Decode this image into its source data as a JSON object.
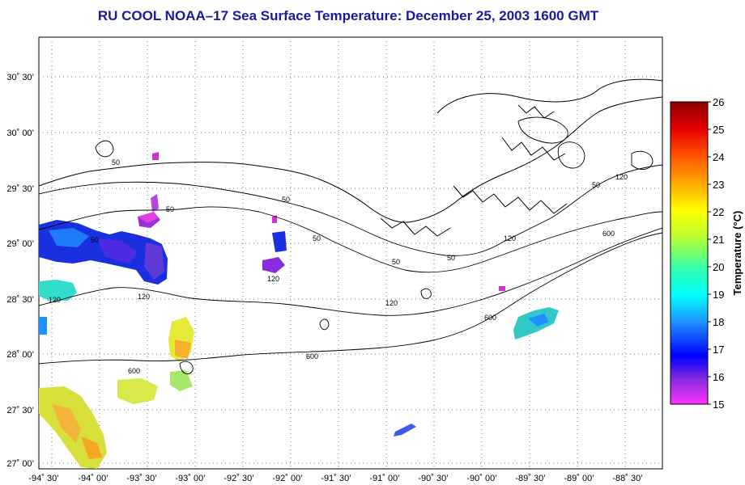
{
  "title": "RU COOL  NOAA–17  Sea Surface Temperature:  December 25, 2003 1600 GMT",
  "lat_labels": [
    "30˚ 30’",
    "30˚ 00’",
    "29˚ 30’",
    "29˚ 00’",
    "28˚ 30’",
    "28˚ 00’",
    "27˚ 30’",
    "27˚ 00’"
  ],
  "lon_labels": [
    "-94˚ 30’",
    "-94˚ 00’",
    "-93˚ 30’",
    "-93˚ 00’",
    "-92˚ 30’",
    "-92˚ 00’",
    "-91˚ 30’",
    "-91˚ 00’",
    "-90˚ 30’",
    "-90˚ 00’",
    "-89˚ 30’",
    "-89˚ 00’",
    "-88˚ 30’"
  ],
  "colorbar": {
    "label": "Temperature (°C)",
    "ticks": [
      "26",
      "25",
      "24",
      "23",
      "22",
      "21",
      "20",
      "19",
      "18",
      "17",
      "16",
      "15"
    ],
    "min": 15,
    "max": 26
  },
  "contour_labels": {
    "c50": "50",
    "c120": "120",
    "c600": "600"
  },
  "colors": {
    "title": "#1a1a9c",
    "land": "#000000",
    "grid": "#7a7a7a"
  }
}
